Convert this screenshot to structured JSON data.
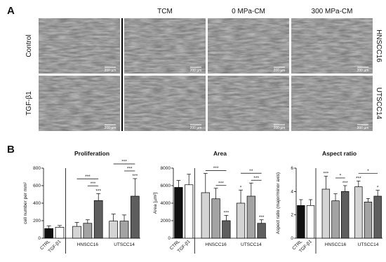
{
  "panel_a": {
    "label": "A",
    "columns": [
      "TCM",
      "0 MPa-CM",
      "300 MPa-CM"
    ],
    "rows_left": [
      "Control",
      "TGF-β1"
    ],
    "rows_right": [
      "HNSCC16",
      "UTSCC14"
    ],
    "scale_bars": [
      "200 µm",
      "200 µm",
      "200 µm",
      "200 µm",
      "200 µm",
      "200 µm",
      "200 µm",
      "200 µm"
    ]
  },
  "panel_b": {
    "label": "B"
  },
  "chart_data": [
    {
      "type": "bar",
      "title": "Proliferation",
      "y_label": "cell number per mm²",
      "categories": [
        "CTRL",
        "TGF-β1",
        null,
        null,
        null,
        null,
        null,
        null
      ],
      "groups": [
        {
          "label": "HNSCC16",
          "bars": [
            2,
            4
          ]
        },
        {
          "label": "UTSCC14",
          "bars": [
            5,
            7
          ]
        }
      ],
      "values": [
        110,
        125,
        135,
        170,
        430,
        195,
        195,
        480
      ],
      "errors": [
        30,
        20,
        45,
        40,
        80,
        80,
        70,
        200
      ],
      "colors": [
        "#111111",
        "#ffffff",
        "#d4d4d4",
        "#a3a3a3",
        "#5e5e5e",
        "#d4d4d4",
        "#a3a3a3",
        "#5e5e5e"
      ],
      "ylim": [
        0,
        800
      ],
      "yticks": [
        0,
        200,
        400,
        600,
        800
      ],
      "annotations": [
        {
          "label": "***",
          "bars": [
            4
          ]
        },
        {
          "label": "***",
          "bars": [
            3,
            4
          ]
        },
        {
          "label": "***",
          "bars": [
            2,
            4
          ]
        },
        {
          "label": "***",
          "bars": [
            7
          ]
        },
        {
          "label": "***",
          "bars": [
            6,
            7
          ]
        },
        {
          "label": "***",
          "bars": [
            5,
            7
          ]
        }
      ]
    },
    {
      "type": "bar",
      "title": "Area",
      "y_label": "Area [µm²]",
      "categories": [
        "CTRL",
        "TGF-β1",
        null,
        null,
        null,
        null,
        null,
        null
      ],
      "groups": [
        {
          "label": "HNSCC16",
          "bars": [
            2,
            4
          ]
        },
        {
          "label": "UTSCC14",
          "bars": [
            5,
            7
          ]
        }
      ],
      "values": [
        5800,
        6100,
        5200,
        4500,
        2000,
        4000,
        4800,
        1700
      ],
      "errors": [
        800,
        1200,
        2200,
        1200,
        600,
        1500,
        1500,
        400
      ],
      "colors": [
        "#111111",
        "#ffffff",
        "#d4d4d4",
        "#a3a3a3",
        "#5e5e5e",
        "#d4d4d4",
        "#a3a3a3",
        "#5e5e5e"
      ],
      "ylim": [
        0,
        8000
      ],
      "yticks": [
        0,
        2000,
        4000,
        6000,
        8000
      ],
      "annotations": [
        {
          "label": "***",
          "bars": [
            4
          ]
        },
        {
          "label": "***",
          "bars": [
            3,
            4
          ]
        },
        {
          "label": "***",
          "bars": [
            2,
            4
          ]
        },
        {
          "label": "*",
          "bars": [
            5
          ]
        },
        {
          "label": "***",
          "bars": [
            7
          ]
        },
        {
          "label": "***",
          "bars": [
            6,
            7
          ]
        },
        {
          "label": "**",
          "bars": [
            5,
            7
          ]
        }
      ]
    },
    {
      "type": "bar",
      "title": "Aspect ratio",
      "y_label": "Aspect ratio (major/minor axis)",
      "categories": [
        "CTRL",
        "TGF-β1",
        null,
        null,
        null,
        null,
        null,
        null
      ],
      "groups": [
        {
          "label": "HNSCC16",
          "bars": [
            2,
            4
          ]
        },
        {
          "label": "UTSCC14",
          "bars": [
            5,
            7
          ]
        }
      ],
      "values": [
        2.8,
        2.8,
        4.2,
        3.2,
        4.0,
        4.4,
        3.1,
        3.6
      ],
      "errors": [
        0.5,
        0.5,
        1.1,
        0.6,
        0.5,
        0.5,
        0.3,
        0.5
      ],
      "colors": [
        "#111111",
        "#ffffff",
        "#d4d4d4",
        "#a3a3a3",
        "#5e5e5e",
        "#d4d4d4",
        "#a3a3a3",
        "#5e5e5e"
      ],
      "ylim": [
        0,
        6
      ],
      "yticks": [
        0,
        2,
        4,
        6
      ],
      "annotations": [
        {
          "label": "***",
          "bars": [
            2
          ]
        },
        {
          "label": "***",
          "bars": [
            4
          ]
        },
        {
          "label": "*",
          "bars": [
            3,
            4
          ]
        },
        {
          "label": "***",
          "bars": [
            5
          ]
        },
        {
          "label": "*",
          "bars": [
            7
          ]
        },
        {
          "label": "*",
          "bars": [
            5,
            7
          ]
        }
      ]
    }
  ]
}
